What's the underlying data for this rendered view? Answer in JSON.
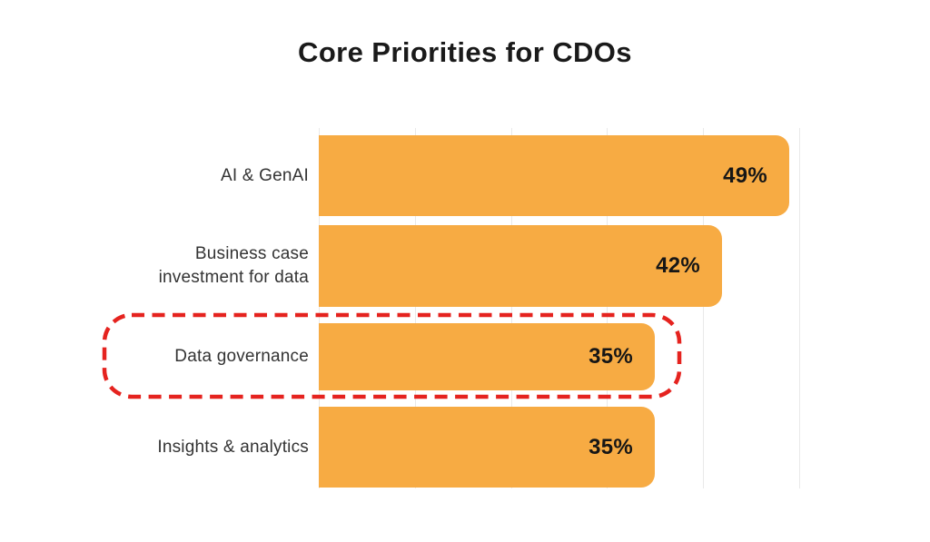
{
  "page": {
    "background": "#ffffff"
  },
  "title": "Core Priorities for CDOs",
  "chart_data": {
    "type": "bar",
    "orientation": "horizontal",
    "title": "Core Priorities for CDOs",
    "categories": [
      "AI & GenAI",
      "Business case investment for data",
      "Data governance",
      "Insights & analytics"
    ],
    "label_lines": [
      [
        "AI & GenAI"
      ],
      [
        "Business case",
        "investment for data"
      ],
      [
        "Data governance"
      ],
      [
        "Insights & analytics"
      ]
    ],
    "values": [
      49,
      42,
      35,
      35
    ],
    "value_labels": [
      "49%",
      "42%",
      "35%",
      "35%"
    ],
    "xlim": [
      0,
      50
    ],
    "gridline_interval_percent": 10,
    "grid": true,
    "legend": "none",
    "bar_color": "#F7AB43",
    "gridline_color": "#E9E9E9",
    "value_label_color": "#161616",
    "category_label_color": "#333333",
    "title_color": "#1A1A1A",
    "highlight": {
      "index": 2,
      "category": "Data governance",
      "style": "red-dashed-rounded-outline",
      "color": "#E5231F"
    }
  }
}
